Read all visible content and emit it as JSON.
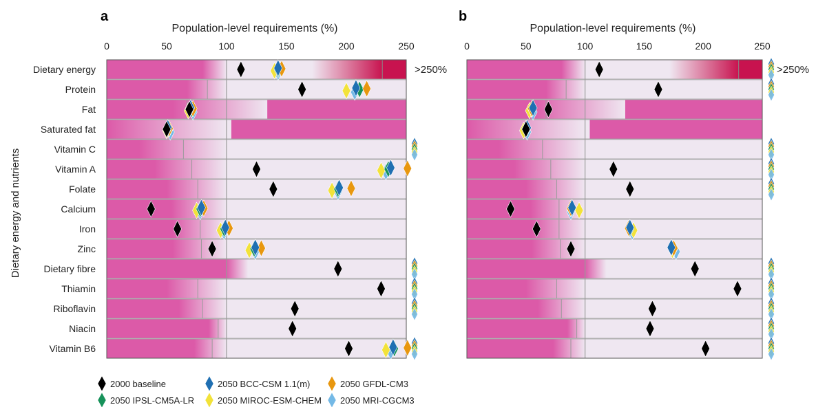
{
  "figure": {
    "yaxis_label": "Dietary energy and nutrients",
    "overflow_label": ">250%",
    "panel_a_label": "a",
    "panel_b_label": "b"
  },
  "colors": {
    "bar_pink": "#dc5aa8",
    "fade_light": "#efe7f1",
    "band_dark": "#c8134f",
    "grid": "#9a9a9a",
    "baseline": "#000000",
    "bcc": "#1f6fb2",
    "gfdl": "#e8970f",
    "ipsl": "#17925a",
    "miroc": "#f2e23a",
    "mri": "#74b9e6"
  },
  "legend": {
    "items": [
      {
        "label": "2000 baseline",
        "series": "baseline"
      },
      {
        "label": "2050 BCC-CSM 1.1(m)",
        "series": "bcc"
      },
      {
        "label": "2050 GFDL-CM3",
        "series": "gfdl"
      },
      {
        "label": "2050 IPSL-CM5A-LR",
        "series": "ipsl"
      },
      {
        "label": "2050 MIROC-ESM-CHEM",
        "series": "miroc"
      },
      {
        "label": "2050 MRI-CGCM3",
        "series": "mri"
      }
    ]
  },
  "chart_data": [
    {
      "panel": "a",
      "type": "dot",
      "title": "Population-level requirements (%)",
      "xlim": [
        0,
        250
      ],
      "ticks": [
        0,
        50,
        100,
        150,
        200,
        250
      ],
      "categories": [
        "Dietary energy",
        "Protein",
        "Fat",
        "Saturated fat",
        "Vitamin C",
        "Vitamin A",
        "Folate",
        "Calcium",
        "Iron",
        "Zinc",
        "Dietary fibre",
        "Thiamin",
        "Riboflavin",
        "Niacin",
        "Vitamin B6"
      ],
      "requirement_bands": [
        {
          "solid_end": 80,
          "mid": 100,
          "fade_end": 100,
          "overlay_start": 230
        },
        {
          "solid_end": 67,
          "mid": 84,
          "fade_end": 100
        },
        {
          "solid_end": 55,
          "mid": 67,
          "fade_end": 134,
          "overlay_start": 134
        },
        {
          "solid_end": 0,
          "mid": 100,
          "fade_end": 100,
          "overlay_start": 104
        },
        {
          "solid_end": 27,
          "mid": 64,
          "fade_end": 100
        },
        {
          "solid_end": 40,
          "mid": 71,
          "fade_end": 100
        },
        {
          "solid_end": 50,
          "mid": 76,
          "fade_end": 100
        },
        {
          "solid_end": 54,
          "mid": 78,
          "fade_end": 100
        },
        {
          "solid_end": 55,
          "mid": 78,
          "fade_end": 100
        },
        {
          "solid_end": 55,
          "mid": 79,
          "fade_end": 100
        },
        {
          "solid_end": 100,
          "mid": 100,
          "fade_end": 118
        },
        {
          "solid_end": 50,
          "mid": 76,
          "fade_end": 100
        },
        {
          "solid_end": 60,
          "mid": 80,
          "fade_end": 100
        },
        {
          "solid_end": 85,
          "mid": 93,
          "fade_end": 100
        },
        {
          "solid_end": 73,
          "mid": 88,
          "fade_end": 100
        }
      ],
      "series": [
        {
          "name": "2000 baseline",
          "key": "baseline",
          "values": [
            112,
            163,
            69,
            50,
            null,
            125,
            139,
            37,
            59,
            88,
            193,
            229,
            157,
            155,
            202
          ]
        },
        {
          "name": "2050 BCC-CSM 1.1(m)",
          "key": "bcc",
          "values": [
            143,
            208,
            70,
            51,
            null,
            237,
            194,
            79,
            99,
            124,
            null,
            null,
            null,
            null,
            239
          ]
        },
        {
          "name": "2050 GFDL-CM3",
          "key": "gfdl",
          "values": [
            146,
            217,
            72,
            52,
            null,
            251,
            204,
            81,
            102,
            129,
            null,
            null,
            null,
            null,
            251
          ]
        },
        {
          "name": "2050 IPSL-CM5A-LR",
          "key": "ipsl",
          "values": [
            143,
            211,
            71,
            52,
            null,
            235,
            193,
            78,
            98,
            123,
            null,
            null,
            null,
            null,
            240
          ]
        },
        {
          "name": "2050 MIROC-ESM-CHEM",
          "key": "miroc",
          "values": [
            140,
            200,
            68,
            50,
            null,
            229,
            188,
            75,
            95,
            119,
            null,
            null,
            null,
            null,
            233
          ]
        },
        {
          "name": "2050 MRI-CGCM3",
          "key": "mri",
          "values": [
            143,
            207,
            72,
            53,
            null,
            233,
            193,
            78,
            98,
            124,
            null,
            null,
            null,
            null,
            237
          ]
        }
      ],
      "overflow_rows": [
        4,
        10,
        11,
        12,
        14
      ]
    },
    {
      "panel": "b",
      "type": "dot",
      "title": "Population-level requirements (%)",
      "xlim": [
        0,
        250
      ],
      "ticks": [
        0,
        50,
        100,
        150,
        200,
        250
      ],
      "categories": [
        "Dietary energy",
        "Protein",
        "Fat",
        "Saturated fat",
        "Vitamin C",
        "Vitamin A",
        "Folate",
        "Calcium",
        "Iron",
        "Zinc",
        "Dietary fibre",
        "Thiamin",
        "Riboflavin",
        "Niacin",
        "Vitamin B6"
      ],
      "requirement_bands": [
        {
          "solid_end": 80,
          "mid": 100,
          "fade_end": 100,
          "overlay_start": 230
        },
        {
          "solid_end": 67,
          "mid": 84,
          "fade_end": 100
        },
        {
          "solid_end": 55,
          "mid": 67,
          "fade_end": 134,
          "overlay_start": 134
        },
        {
          "solid_end": 0,
          "mid": 100,
          "fade_end": 100,
          "overlay_start": 104
        },
        {
          "solid_end": 27,
          "mid": 64,
          "fade_end": 100
        },
        {
          "solid_end": 40,
          "mid": 71,
          "fade_end": 100
        },
        {
          "solid_end": 50,
          "mid": 76,
          "fade_end": 100
        },
        {
          "solid_end": 54,
          "mid": 78,
          "fade_end": 100
        },
        {
          "solid_end": 55,
          "mid": 78,
          "fade_end": 100
        },
        {
          "solid_end": 55,
          "mid": 79,
          "fade_end": 100
        },
        {
          "solid_end": 100,
          "mid": 100,
          "fade_end": 118
        },
        {
          "solid_end": 50,
          "mid": 76,
          "fade_end": 100
        },
        {
          "solid_end": 60,
          "mid": 80,
          "fade_end": 100
        },
        {
          "solid_end": 85,
          "mid": 93,
          "fade_end": 100
        },
        {
          "solid_end": 73,
          "mid": 88,
          "fade_end": 100
        }
      ],
      "series": [
        {
          "name": "2000 baseline",
          "key": "baseline",
          "values": [
            112,
            162,
            69,
            50,
            null,
            124,
            138,
            37,
            59,
            88,
            193,
            229,
            157,
            155,
            202
          ]
        },
        {
          "name": "2050 BCC-CSM 1.1(m)",
          "key": "bcc",
          "values": [
            null,
            null,
            56,
            51,
            null,
            null,
            null,
            89,
            138,
            173,
            null,
            null,
            null,
            null,
            null
          ]
        },
        {
          "name": "2050 GFDL-CM3",
          "key": "gfdl",
          "values": [
            null,
            null,
            55,
            50,
            null,
            null,
            null,
            88,
            137,
            175,
            null,
            null,
            null,
            null,
            null
          ]
        },
        {
          "name": "2050 IPSL-CM5A-LR",
          "key": "ipsl",
          "values": [
            null,
            null,
            55,
            50,
            null,
            null,
            null,
            88,
            138,
            175,
            null,
            null,
            null,
            null,
            null
          ]
        },
        {
          "name": "2050 MIROC-ESM-CHEM",
          "key": "miroc",
          "values": [
            null,
            null,
            53,
            48,
            null,
            null,
            null,
            95,
            141,
            174,
            null,
            null,
            null,
            null,
            null
          ]
        },
        {
          "name": "2050 MRI-CGCM3",
          "key": "mri",
          "values": [
            null,
            null,
            56,
            51,
            null,
            null,
            null,
            88,
            140,
            177,
            null,
            null,
            null,
            null,
            null
          ]
        }
      ],
      "overflow_rows": [
        0,
        1,
        4,
        5,
        6,
        10,
        11,
        12,
        13,
        14
      ]
    }
  ]
}
